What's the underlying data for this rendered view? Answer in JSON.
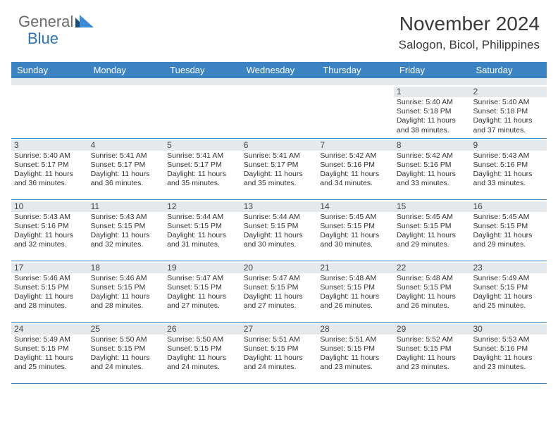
{
  "logo": {
    "text_gray": "General",
    "text_blue": "Blue",
    "gray_color": "#6a6a6a",
    "blue_color": "#2f72b6",
    "triangle_dark": "#1c4d80",
    "triangle_light": "#3d8bd0"
  },
  "title": "November 2024",
  "location": "Salogon, Bicol, Philippines",
  "header_bg": "#3c83c4",
  "border_color": "#3c83c4",
  "daynum_bg": "#e6e9ec",
  "day_names": [
    "Sunday",
    "Monday",
    "Tuesday",
    "Wednesday",
    "Thursday",
    "Friday",
    "Saturday"
  ],
  "weeks": [
    [
      {
        "empty": true
      },
      {
        "empty": true
      },
      {
        "empty": true
      },
      {
        "empty": true
      },
      {
        "empty": true
      },
      {
        "day": "1",
        "sunrise": "Sunrise: 5:40 AM",
        "sunset": "Sunset: 5:18 PM",
        "day1": "Daylight: 11 hours",
        "day2": "and 38 minutes."
      },
      {
        "day": "2",
        "sunrise": "Sunrise: 5:40 AM",
        "sunset": "Sunset: 5:18 PM",
        "day1": "Daylight: 11 hours",
        "day2": "and 37 minutes."
      }
    ],
    [
      {
        "day": "3",
        "sunrise": "Sunrise: 5:40 AM",
        "sunset": "Sunset: 5:17 PM",
        "day1": "Daylight: 11 hours",
        "day2": "and 36 minutes."
      },
      {
        "day": "4",
        "sunrise": "Sunrise: 5:41 AM",
        "sunset": "Sunset: 5:17 PM",
        "day1": "Daylight: 11 hours",
        "day2": "and 36 minutes."
      },
      {
        "day": "5",
        "sunrise": "Sunrise: 5:41 AM",
        "sunset": "Sunset: 5:17 PM",
        "day1": "Daylight: 11 hours",
        "day2": "and 35 minutes."
      },
      {
        "day": "6",
        "sunrise": "Sunrise: 5:41 AM",
        "sunset": "Sunset: 5:17 PM",
        "day1": "Daylight: 11 hours",
        "day2": "and 35 minutes."
      },
      {
        "day": "7",
        "sunrise": "Sunrise: 5:42 AM",
        "sunset": "Sunset: 5:16 PM",
        "day1": "Daylight: 11 hours",
        "day2": "and 34 minutes."
      },
      {
        "day": "8",
        "sunrise": "Sunrise: 5:42 AM",
        "sunset": "Sunset: 5:16 PM",
        "day1": "Daylight: 11 hours",
        "day2": "and 33 minutes."
      },
      {
        "day": "9",
        "sunrise": "Sunrise: 5:43 AM",
        "sunset": "Sunset: 5:16 PM",
        "day1": "Daylight: 11 hours",
        "day2": "and 33 minutes."
      }
    ],
    [
      {
        "day": "10",
        "sunrise": "Sunrise: 5:43 AM",
        "sunset": "Sunset: 5:16 PM",
        "day1": "Daylight: 11 hours",
        "day2": "and 32 minutes."
      },
      {
        "day": "11",
        "sunrise": "Sunrise: 5:43 AM",
        "sunset": "Sunset: 5:15 PM",
        "day1": "Daylight: 11 hours",
        "day2": "and 32 minutes."
      },
      {
        "day": "12",
        "sunrise": "Sunrise: 5:44 AM",
        "sunset": "Sunset: 5:15 PM",
        "day1": "Daylight: 11 hours",
        "day2": "and 31 minutes."
      },
      {
        "day": "13",
        "sunrise": "Sunrise: 5:44 AM",
        "sunset": "Sunset: 5:15 PM",
        "day1": "Daylight: 11 hours",
        "day2": "and 30 minutes."
      },
      {
        "day": "14",
        "sunrise": "Sunrise: 5:45 AM",
        "sunset": "Sunset: 5:15 PM",
        "day1": "Daylight: 11 hours",
        "day2": "and 30 minutes."
      },
      {
        "day": "15",
        "sunrise": "Sunrise: 5:45 AM",
        "sunset": "Sunset: 5:15 PM",
        "day1": "Daylight: 11 hours",
        "day2": "and 29 minutes."
      },
      {
        "day": "16",
        "sunrise": "Sunrise: 5:45 AM",
        "sunset": "Sunset: 5:15 PM",
        "day1": "Daylight: 11 hours",
        "day2": "and 29 minutes."
      }
    ],
    [
      {
        "day": "17",
        "sunrise": "Sunrise: 5:46 AM",
        "sunset": "Sunset: 5:15 PM",
        "day1": "Daylight: 11 hours",
        "day2": "and 28 minutes."
      },
      {
        "day": "18",
        "sunrise": "Sunrise: 5:46 AM",
        "sunset": "Sunset: 5:15 PM",
        "day1": "Daylight: 11 hours",
        "day2": "and 28 minutes."
      },
      {
        "day": "19",
        "sunrise": "Sunrise: 5:47 AM",
        "sunset": "Sunset: 5:15 PM",
        "day1": "Daylight: 11 hours",
        "day2": "and 27 minutes."
      },
      {
        "day": "20",
        "sunrise": "Sunrise: 5:47 AM",
        "sunset": "Sunset: 5:15 PM",
        "day1": "Daylight: 11 hours",
        "day2": "and 27 minutes."
      },
      {
        "day": "21",
        "sunrise": "Sunrise: 5:48 AM",
        "sunset": "Sunset: 5:15 PM",
        "day1": "Daylight: 11 hours",
        "day2": "and 26 minutes."
      },
      {
        "day": "22",
        "sunrise": "Sunrise: 5:48 AM",
        "sunset": "Sunset: 5:15 PM",
        "day1": "Daylight: 11 hours",
        "day2": "and 26 minutes."
      },
      {
        "day": "23",
        "sunrise": "Sunrise: 5:49 AM",
        "sunset": "Sunset: 5:15 PM",
        "day1": "Daylight: 11 hours",
        "day2": "and 25 minutes."
      }
    ],
    [
      {
        "day": "24",
        "sunrise": "Sunrise: 5:49 AM",
        "sunset": "Sunset: 5:15 PM",
        "day1": "Daylight: 11 hours",
        "day2": "and 25 minutes."
      },
      {
        "day": "25",
        "sunrise": "Sunrise: 5:50 AM",
        "sunset": "Sunset: 5:15 PM",
        "day1": "Daylight: 11 hours",
        "day2": "and 24 minutes."
      },
      {
        "day": "26",
        "sunrise": "Sunrise: 5:50 AM",
        "sunset": "Sunset: 5:15 PM",
        "day1": "Daylight: 11 hours",
        "day2": "and 24 minutes."
      },
      {
        "day": "27",
        "sunrise": "Sunrise: 5:51 AM",
        "sunset": "Sunset: 5:15 PM",
        "day1": "Daylight: 11 hours",
        "day2": "and 24 minutes."
      },
      {
        "day": "28",
        "sunrise": "Sunrise: 5:51 AM",
        "sunset": "Sunset: 5:15 PM",
        "day1": "Daylight: 11 hours",
        "day2": "and 23 minutes."
      },
      {
        "day": "29",
        "sunrise": "Sunrise: 5:52 AM",
        "sunset": "Sunset: 5:15 PM",
        "day1": "Daylight: 11 hours",
        "day2": "and 23 minutes."
      },
      {
        "day": "30",
        "sunrise": "Sunrise: 5:53 AM",
        "sunset": "Sunset: 5:16 PM",
        "day1": "Daylight: 11 hours",
        "day2": "and 23 minutes."
      }
    ]
  ]
}
